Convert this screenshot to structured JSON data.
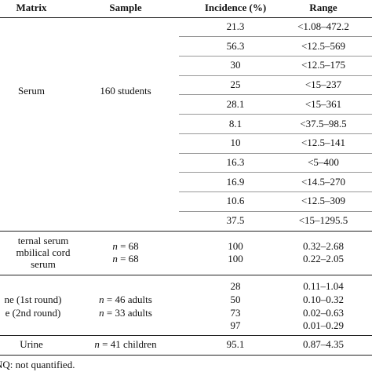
{
  "header": {
    "matrix": "Matrix",
    "sample": "Sample",
    "incidence": "Incidence (%)",
    "range": "Range"
  },
  "serum": {
    "matrix": "Serum",
    "sample": "160 students",
    "incidence": [
      21.3,
      56.3,
      30,
      25,
      28.1,
      8.1,
      10,
      16.3,
      16.9,
      10.6,
      37.5
    ],
    "range": [
      "<1.08–472.2",
      "<12.5–569",
      "<12.5–175",
      "<15–237",
      "<15–361",
      "<37.5–98.5",
      "<12.5–141",
      "<5–400",
      "<14.5–270",
      "<12.5–309",
      "<15–1295.5"
    ]
  },
  "cord": {
    "matrix": [
      "ternal serum",
      "mbilical cord",
      "serum"
    ],
    "sample": [
      "n = 68",
      "n = 68"
    ],
    "incidence": [
      100,
      100
    ],
    "range": [
      "0.32–2.68",
      "0.22–2.05"
    ]
  },
  "urine_rounds": {
    "matrix": [
      "ne (1st round)",
      "e (2nd round)"
    ],
    "sample": [
      "n = 46 adults",
      "n = 33 adults"
    ],
    "incidence": [
      28,
      50,
      73,
      97
    ],
    "range": [
      "0.11–1.04",
      "0.10–0.32",
      "0.02–0.63",
      "0.01–0.29"
    ]
  },
  "urine_children": {
    "matrix": "Urine",
    "sample": "n = 41 children",
    "incidence": 95.1,
    "range": "0.87–4.35"
  },
  "footnote": "NQ: not quantified."
}
